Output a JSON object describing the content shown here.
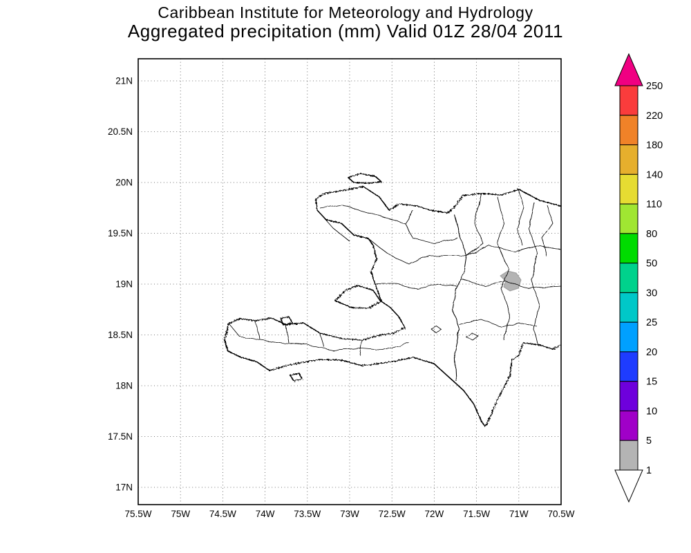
{
  "titles": {
    "line1": "Caribbean Institute for Meteorology and Hydrology",
    "line2": "Aggregated precipitation (mm) Valid 01Z 28/04 2011"
  },
  "map": {
    "lat_ticks": [
      "21N",
      "20.5N",
      "20N",
      "19.5N",
      "19N",
      "18.5N",
      "18N",
      "17.5N",
      "17N"
    ],
    "lon_ticks": [
      "75.5W",
      "75W",
      "74.5W",
      "74W",
      "73.5W",
      "73W",
      "72.5W",
      "72W",
      "71.5W",
      "71W",
      "70.5W"
    ]
  },
  "colorbar": {
    "levels_top_to_bottom": [
      "250",
      "220",
      "180",
      "140",
      "110",
      "80",
      "50",
      "30",
      "25",
      "20",
      "15",
      "10",
      "5",
      "1"
    ],
    "segment_colors_top_to_bottom": [
      "#FA3C3C",
      "#F08228",
      "#E6AF2D",
      "#E6DC32",
      "#A0E632",
      "#00DC00",
      "#00D28C",
      "#00C8C8",
      "#00A0FF",
      "#1E3CFF",
      "#6E00DC",
      "#A000C8",
      "#B4B4B4"
    ],
    "above_max_color": "#F00082",
    "below_min_color": "#FFFFFF"
  },
  "chart_data": {
    "type": "map",
    "title": "Aggregated precipitation (mm) Valid 01Z 28/04 2011",
    "source": "Caribbean Institute for Meteorology and Hydrology",
    "units": "mm",
    "lon_range": [
      "75.5W",
      "70.5W"
    ],
    "lat_range": [
      "17N",
      "21N"
    ],
    "graticule_interval_deg": 0.5,
    "grid": "dotted",
    "legend_position": "right",
    "contour_levels_mm": [
      1,
      5,
      10,
      15,
      20,
      25,
      30,
      50,
      80,
      110,
      140,
      180,
      220,
      250
    ],
    "level_colors_low_to_high": [
      "#B4B4B4",
      "#A000C8",
      "#6E00DC",
      "#1E3CFF",
      "#00A0FF",
      "#00C8C8",
      "#00D28C",
      "#00DC00",
      "#A0E632",
      "#E6DC32",
      "#E6AF2D",
      "#F08228",
      "#FA3C3C",
      "#F00082"
    ],
    "shaded_regions": [
      {
        "value_range_mm": "1-5",
        "color": "#B4B4B4",
        "center_lon": "71.1W",
        "center_lat": "19.0N"
      }
    ],
    "region_depicted": "Hispaniola (Haiti and Dominican Republic)"
  }
}
